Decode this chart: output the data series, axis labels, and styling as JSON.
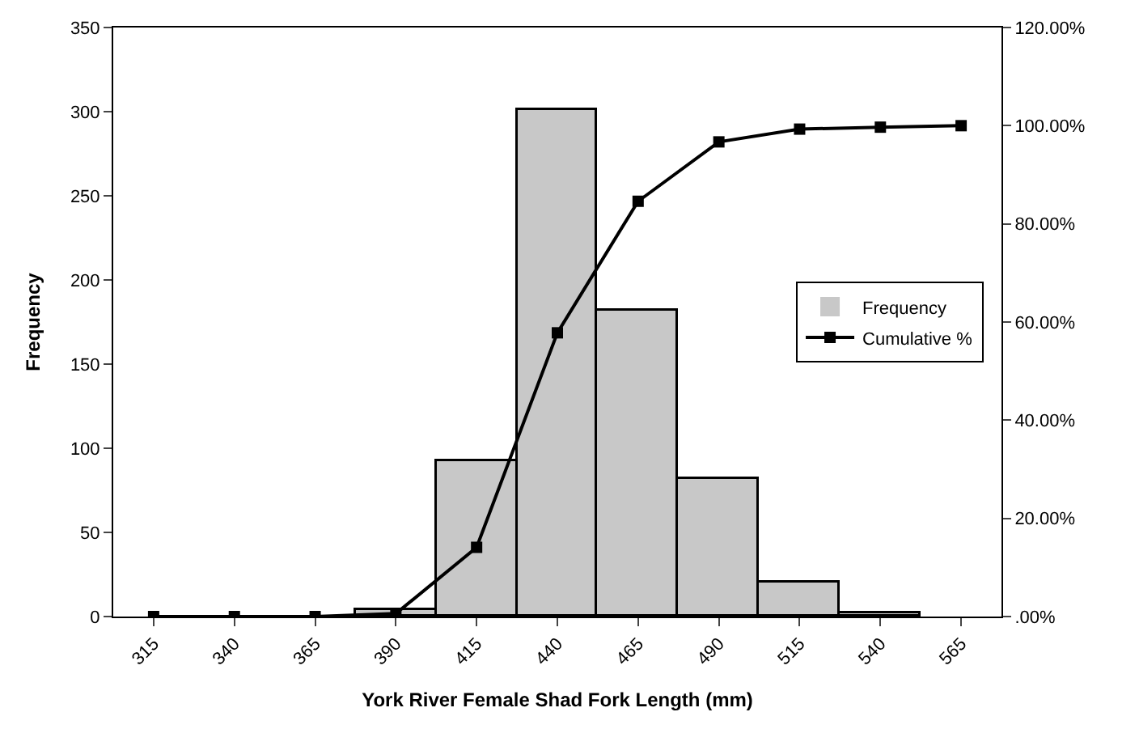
{
  "chart_data": {
    "type": "bar",
    "xlabel": "York River Female Shad Fork Length (mm)",
    "ylabel": "Frequency",
    "categories": [
      "315",
      "340",
      "365",
      "390",
      "415",
      "440",
      "465",
      "490",
      "515",
      "540",
      "565"
    ],
    "series": [
      {
        "name": "Frequency",
        "color": "#c8c8c8",
        "values": [
          0,
          0,
          0,
          4,
          92,
          301,
          182,
          82,
          20,
          2,
          0
        ]
      },
      {
        "name": "Cumulative %",
        "type": "line",
        "axis": "y2",
        "color": "#000000",
        "marker": "square",
        "values": [
          0,
          0,
          0,
          0.6,
          14.1,
          57.8,
          84.6,
          96.7,
          99.3,
          99.7,
          100
        ]
      }
    ],
    "ylim": [
      0,
      350
    ],
    "yticks": [
      0,
      50,
      100,
      150,
      200,
      250,
      300,
      350
    ],
    "y2lim": [
      0,
      120
    ],
    "y2ticks": [
      {
        "value": 0,
        "label": ".00%"
      },
      {
        "value": 20,
        "label": "20.00%"
      },
      {
        "value": 40,
        "label": "40.00%"
      },
      {
        "value": 60,
        "label": "60.00%"
      },
      {
        "value": 80,
        "label": "80.00%"
      },
      {
        "value": 100,
        "label": "100.00%"
      },
      {
        "value": 120,
        "label": "120.00%"
      }
    ],
    "grid": false,
    "legend": "right"
  }
}
